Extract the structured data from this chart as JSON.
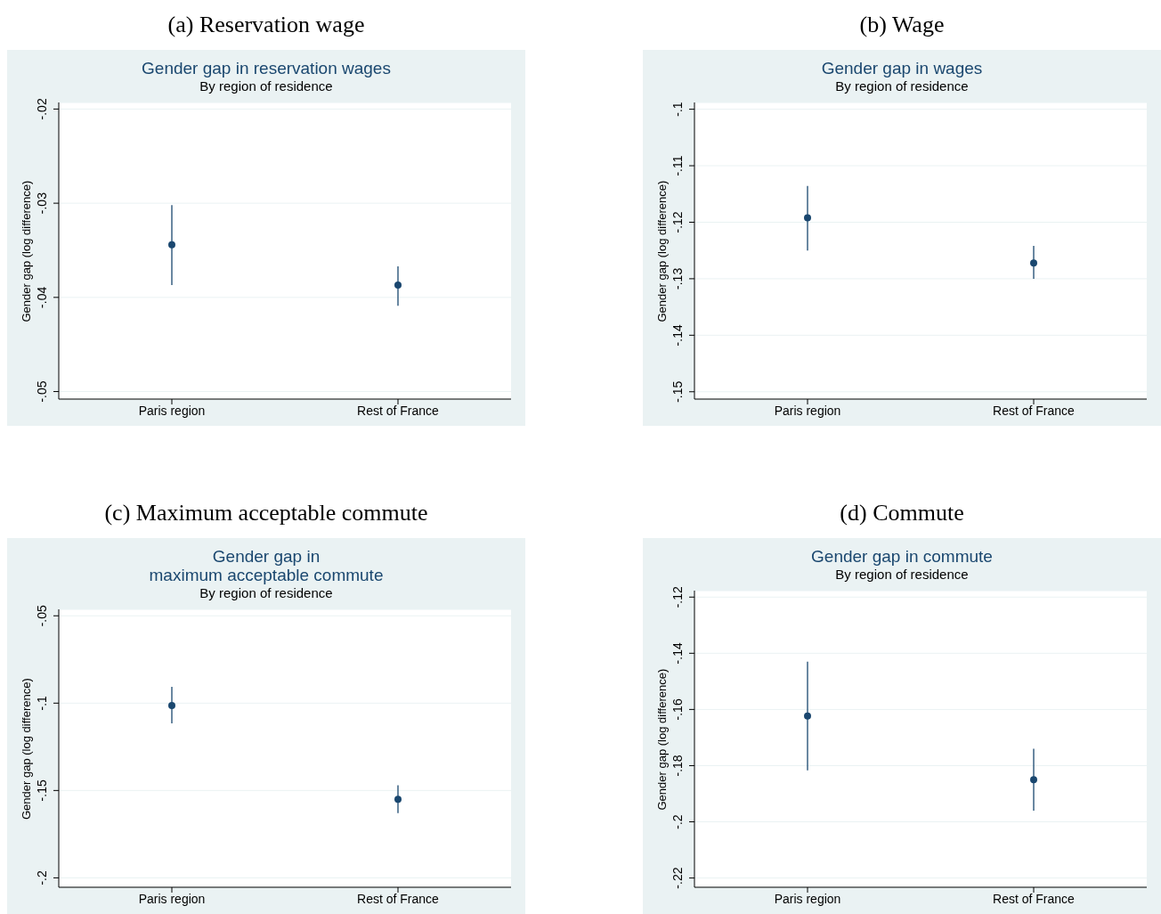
{
  "chart_data": [
    {
      "type": "scatter",
      "annotations": [
        "(a) Reservation wage"
      ],
      "title": "Gender gap in reservation wages",
      "subtitle": "By region of residence",
      "ylabel": "Gender gap (log difference)",
      "categories": [
        "Paris region",
        "Rest of France"
      ],
      "series": [
        {
          "color": "#1a476f",
          "values": [
            -0.0344,
            -0.0387
          ],
          "errors": [
            [
              -0.0387,
              -0.0302
            ],
            [
              -0.0409,
              -0.0367
            ]
          ]
        }
      ],
      "ylim": [
        -0.0508,
        -0.0193
      ],
      "yticks": [
        {
          "value": -0.02,
          "label": "-.02"
        },
        {
          "value": -0.03,
          "label": "-.03"
        },
        {
          "value": -0.04,
          "label": "-.04"
        },
        {
          "value": -0.05,
          "label": "-.05"
        }
      ],
      "grid": "y",
      "marker": "circle"
    },
    {
      "type": "scatter",
      "annotations": [
        "(b) Wage"
      ],
      "title": "Gender gap in wages",
      "subtitle": "By region of residence",
      "ylabel": "Gender gap (log difference)",
      "categories": [
        "Paris region",
        "Rest of France"
      ],
      "series": [
        {
          "color": "#1a476f",
          "values": [
            -0.1192,
            -0.1272
          ],
          "errors": [
            [
              -0.125,
              -0.1136
            ],
            [
              -0.13,
              -0.1242
            ]
          ]
        }
      ],
      "ylim": [
        -0.1513,
        -0.0988
      ],
      "yticks": [
        {
          "value": -0.1,
          "label": "-.1"
        },
        {
          "value": -0.11,
          "label": "-.11"
        },
        {
          "value": -0.12,
          "label": "-.12"
        },
        {
          "value": -0.13,
          "label": "-.13"
        },
        {
          "value": -0.14,
          "label": "-.14"
        },
        {
          "value": -0.15,
          "label": "-.15"
        }
      ],
      "grid": "y",
      "marker": "circle"
    },
    {
      "type": "scatter",
      "annotations": [
        "(c) Maximum acceptable commute"
      ],
      "title": "Gender gap in\nmaximum acceptable commute",
      "subtitle": "By region of residence",
      "ylabel": "Gender gap (log difference)",
      "categories": [
        "Paris region",
        "Rest of France"
      ],
      "series": [
        {
          "color": "#1a476f",
          "values": [
            -0.1014,
            -0.155
          ],
          "errors": [
            [
              -0.1116,
              -0.0907
            ],
            [
              -0.163,
              -0.147
            ]
          ]
        }
      ],
      "ylim": [
        -0.2054,
        -0.0463
      ],
      "yticks": [
        {
          "value": -0.05,
          "label": "-.05"
        },
        {
          "value": -0.1,
          "label": "-.1"
        },
        {
          "value": -0.15,
          "label": "-.15"
        },
        {
          "value": -0.2,
          "label": "-.2"
        }
      ],
      "grid": "y",
      "marker": "circle"
    },
    {
      "type": "scatter",
      "annotations": [
        "(d) Commute"
      ],
      "title": "Gender gap in commute",
      "subtitle": "By region of residence",
      "ylabel": "Gender gap (log difference)",
      "categories": [
        "Paris region",
        "Rest of France"
      ],
      "series": [
        {
          "color": "#1a476f",
          "values": [
            -0.1623,
            -0.185
          ],
          "errors": [
            [
              -0.1817,
              -0.143
            ],
            [
              -0.196,
              -0.174
            ]
          ]
        }
      ],
      "ylim": [
        -0.2233,
        -0.1177
      ],
      "yticks": [
        {
          "value": -0.12,
          "label": "-.12"
        },
        {
          "value": -0.14,
          "label": "-.14"
        },
        {
          "value": -0.16,
          "label": "-.16"
        },
        {
          "value": -0.18,
          "label": "-.18"
        },
        {
          "value": -0.2,
          "label": "-.2"
        },
        {
          "value": -0.22,
          "label": "-.22"
        }
      ],
      "grid": "y",
      "marker": "circle"
    }
  ]
}
